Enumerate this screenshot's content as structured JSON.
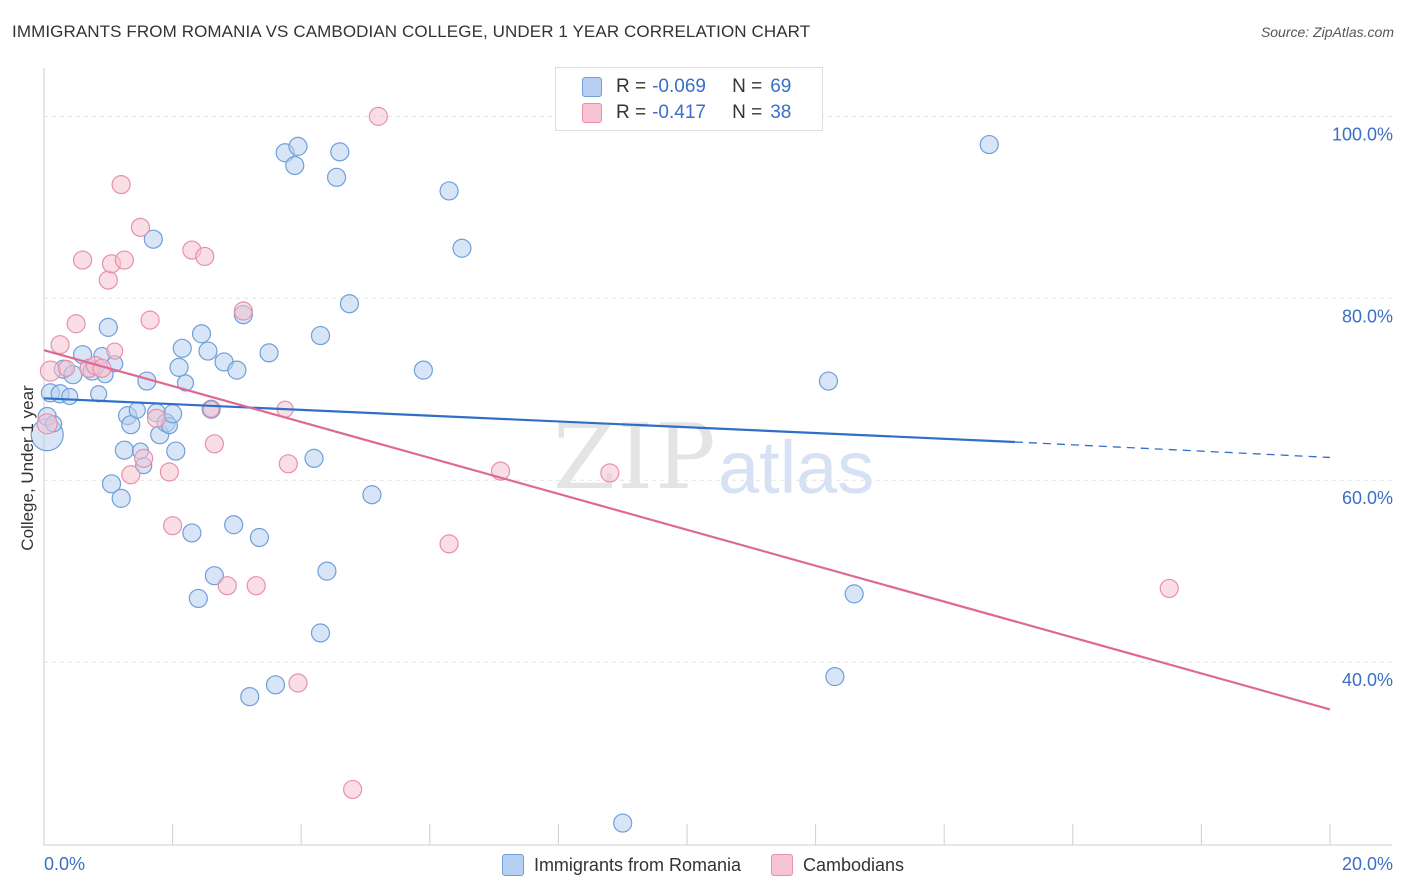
{
  "chart_data": {
    "type": "scatter",
    "title": "IMMIGRANTS FROM ROMANIA VS CAMBODIAN COLLEGE, UNDER 1 YEAR CORRELATION CHART",
    "source": "Source: ZipAtlas.com",
    "ylabel": "College, Under 1 year",
    "xlim": [
      0,
      20
    ],
    "ylim": [
      20,
      104
    ],
    "x_tick_labels": [
      "0.0%",
      "20.0%"
    ],
    "y_ticks": [
      {
        "value": 100,
        "label": "100.0%"
      },
      {
        "value": 80,
        "label": "80.0%"
      },
      {
        "value": 60,
        "label": "60.0%"
      },
      {
        "value": 40,
        "label": "40.0%"
      }
    ],
    "watermark": {
      "zip": "ZIP",
      "atlas": "atlas"
    },
    "legend": {
      "r_label": "R =",
      "n_label": "N =",
      "entries": [
        {
          "name": "Immigrants from Romania",
          "r": "-0.069",
          "n": "69"
        },
        {
          "name": "Cambodians",
          "r": "-0.417",
          "n": "38"
        }
      ]
    },
    "series": [
      {
        "name": "Immigrants from Romania",
        "color": "#6f9fd8",
        "fill": "#b7cff0",
        "line_color": "#2f6fc8",
        "trend": {
          "x1": 0,
          "y1": 69.0,
          "x2": 15.1,
          "y2": 64.2,
          "dash_to_x": 20,
          "dash_to_y": 62.5
        },
        "points": [
          [
            0.05,
            65.0,
            16
          ],
          [
            0.05,
            67.0,
            9
          ],
          [
            0.1,
            69.6,
            9
          ],
          [
            0.15,
            66.2,
            8
          ],
          [
            0.25,
            69.5,
            9
          ],
          [
            0.3,
            72.2,
            9
          ],
          [
            0.4,
            69.2,
            8
          ],
          [
            0.45,
            71.6,
            9
          ],
          [
            0.6,
            73.8,
            9
          ],
          [
            0.7,
            72.3,
            9
          ],
          [
            0.75,
            72.0,
            9
          ],
          [
            0.85,
            69.5,
            8
          ],
          [
            0.9,
            73.7,
            8
          ],
          [
            0.95,
            71.6,
            8
          ],
          [
            1.0,
            76.8,
            9
          ],
          [
            1.05,
            59.6,
            9
          ],
          [
            1.1,
            72.8,
            8
          ],
          [
            1.2,
            58.0,
            9
          ],
          [
            1.25,
            63.3,
            9
          ],
          [
            1.3,
            67.1,
            9
          ],
          [
            1.35,
            66.1,
            9
          ],
          [
            1.45,
            67.7,
            8
          ],
          [
            1.5,
            63.2,
            8
          ],
          [
            1.55,
            61.6,
            8
          ],
          [
            1.6,
            70.9,
            9
          ],
          [
            1.7,
            86.5,
            9
          ],
          [
            1.75,
            67.4,
            9
          ],
          [
            1.8,
            65.0,
            9
          ],
          [
            1.9,
            66.3,
            9
          ],
          [
            1.95,
            66.0,
            8
          ],
          [
            2.0,
            67.3,
            9
          ],
          [
            2.05,
            63.2,
            9
          ],
          [
            2.1,
            72.4,
            9
          ],
          [
            2.15,
            74.5,
            9
          ],
          [
            2.2,
            70.7,
            8
          ],
          [
            2.3,
            54.2,
            9
          ],
          [
            2.4,
            47.0,
            9
          ],
          [
            2.45,
            76.1,
            9
          ],
          [
            2.55,
            74.2,
            9
          ],
          [
            2.6,
            67.8,
            9
          ],
          [
            2.65,
            49.5,
            9
          ],
          [
            2.8,
            73.0,
            9
          ],
          [
            2.95,
            55.1,
            9
          ],
          [
            3.0,
            72.1,
            9
          ],
          [
            3.1,
            78.2,
            9
          ],
          [
            3.2,
            36.2,
            9
          ],
          [
            3.35,
            53.7,
            9
          ],
          [
            3.5,
            74.0,
            9
          ],
          [
            3.6,
            37.5,
            9
          ],
          [
            3.75,
            96.0,
            9
          ],
          [
            3.9,
            94.6,
            9
          ],
          [
            3.95,
            96.7,
            9
          ],
          [
            4.2,
            62.4,
            9
          ],
          [
            4.3,
            43.2,
            9
          ],
          [
            4.3,
            75.9,
            9
          ],
          [
            4.4,
            50.0,
            9
          ],
          [
            4.55,
            93.3,
            9
          ],
          [
            4.6,
            96.1,
            9
          ],
          [
            4.75,
            79.4,
            9
          ],
          [
            5.1,
            58.4,
            9
          ],
          [
            5.9,
            72.1,
            9
          ],
          [
            6.3,
            91.8,
            9
          ],
          [
            6.5,
            85.5,
            9
          ],
          [
            9.0,
            22.3,
            9
          ],
          [
            12.2,
            70.9,
            9
          ],
          [
            12.3,
            38.4,
            9
          ],
          [
            12.6,
            47.5,
            9
          ],
          [
            14.7,
            96.9,
            9
          ]
        ]
      },
      {
        "name": "Cambodians",
        "color": "#e890ab",
        "fill": "#f6c3d2",
        "line_color": "#de6a93",
        "trend": {
          "x1": 0,
          "y1": 74.3,
          "x2": 20,
          "y2": 34.8
        },
        "points": [
          [
            0.05,
            66.2,
            10
          ],
          [
            0.1,
            72.0,
            10
          ],
          [
            0.25,
            74.9,
            9
          ],
          [
            0.35,
            72.3,
            8
          ],
          [
            0.5,
            77.2,
            9
          ],
          [
            0.6,
            84.2,
            9
          ],
          [
            0.7,
            72.3,
            9
          ],
          [
            0.8,
            72.6,
            9
          ],
          [
            0.9,
            72.3,
            9
          ],
          [
            1.0,
            82.0,
            9
          ],
          [
            1.05,
            83.8,
            9
          ],
          [
            1.1,
            74.2,
            8
          ],
          [
            1.2,
            92.5,
            9
          ],
          [
            1.25,
            84.2,
            9
          ],
          [
            1.35,
            60.6,
            9
          ],
          [
            1.5,
            87.8,
            9
          ],
          [
            1.55,
            62.4,
            9
          ],
          [
            1.65,
            77.6,
            9
          ],
          [
            1.75,
            66.8,
            9
          ],
          [
            1.95,
            60.9,
            9
          ],
          [
            2.0,
            55.0,
            9
          ],
          [
            2.3,
            85.3,
            9
          ],
          [
            2.5,
            84.6,
            9
          ],
          [
            2.6,
            67.8,
            8
          ],
          [
            2.65,
            64.0,
            9
          ],
          [
            2.85,
            48.4,
            9
          ],
          [
            3.1,
            78.6,
            9
          ],
          [
            3.3,
            48.4,
            9
          ],
          [
            3.75,
            67.8,
            8
          ],
          [
            3.8,
            61.8,
            9
          ],
          [
            3.95,
            37.7,
            9
          ],
          [
            4.8,
            26.0,
            9
          ],
          [
            5.2,
            100.0,
            9
          ],
          [
            6.3,
            53.0,
            9
          ],
          [
            7.1,
            61.0,
            9
          ],
          [
            8.8,
            60.8,
            9
          ],
          [
            17.5,
            48.1,
            9
          ]
        ]
      }
    ]
  }
}
